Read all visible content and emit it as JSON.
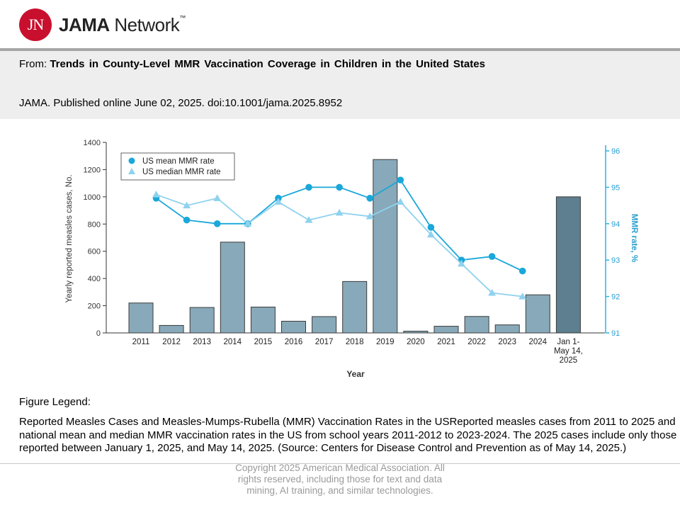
{
  "header": {
    "logo_initials": "JN",
    "logo_brand": "JAMA",
    "logo_suffix": "Network",
    "logo_tm": "™"
  },
  "article": {
    "from_label": "From:",
    "title": "Trends in County-Level MMR Vaccination Coverage in Children in the United States",
    "citation": "JAMA. Published online June 02, 2025. doi:10.1001/jama.2025.8952"
  },
  "figure": {
    "legend_heading": "Figure Legend:",
    "legend_text": "Reported Measles Cases and Measles-Mumps-Rubella (MMR) Vaccination Rates in the USReported measles cases from 2011 to 2025 and national mean and median MMR vaccination rates in the US from school years 2011-2012 to 2023-2024. The 2025 cases include only those reported between January 1, 2025, and May 14, 2025. (Source: Centers for Disease Control and Prevention as of May 14, 2025.)",
    "copyright": "Copyright 2025 American Medical Association. All rights reserved, including those for text and data mining, AI training, and similar technologies."
  },
  "colors": {
    "bar": "#88a9b9",
    "bar_highlight": "#5d7f8f",
    "bar_stroke": "#3b3b3b",
    "mean_line": "#1aa7d9",
    "median_line": "#8fd2ee",
    "right_axis": "#29b3e6"
  },
  "chart_data": {
    "type": "bar",
    "xlabel": "Year",
    "ylabel": "Yearly reported measles cases, No.",
    "ylim": [
      0,
      1400
    ],
    "yticks": [
      0,
      200,
      400,
      600,
      800,
      1000,
      1200,
      1400
    ],
    "y2label": "MMR rate, %",
    "y2lim": [
      91,
      96
    ],
    "y2ticks": [
      91,
      92,
      93,
      94,
      95,
      96
    ],
    "categories": [
      "2011",
      "2012",
      "2013",
      "2014",
      "2015",
      "2016",
      "2017",
      "2018",
      "2019",
      "2020",
      "2021",
      "2022",
      "2023",
      "2024",
      "Jan 1-\nMay 14,\n2025"
    ],
    "values": [
      220,
      55,
      187,
      667,
      190,
      86,
      120,
      378,
      1274,
      13,
      49,
      121,
      59,
      280,
      1000
    ],
    "highlight_index": 14,
    "grid": "horizontal",
    "legend_position": "top-left",
    "series": [
      {
        "name": "US mean MMR rate",
        "type": "line",
        "axis": "right",
        "marker": "circle",
        "values": [
          94.7,
          94.1,
          94.0,
          94.0,
          94.7,
          95.0,
          95.0,
          94.7,
          95.2,
          93.9,
          93.0,
          93.1,
          92.7,
          null,
          null
        ]
      },
      {
        "name": "US median MMR rate",
        "type": "line",
        "axis": "right",
        "marker": "triangle",
        "values": [
          94.8,
          94.5,
          94.7,
          94.0,
          94.6,
          94.1,
          94.3,
          94.2,
          94.6,
          93.7,
          92.9,
          92.1,
          92.0,
          null,
          null
        ]
      }
    ]
  }
}
